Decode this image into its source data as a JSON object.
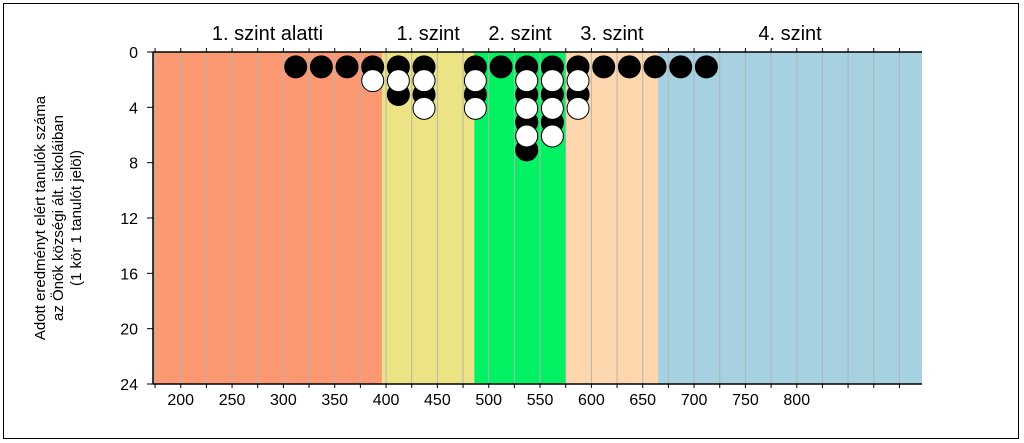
{
  "chart_data": {
    "type": "dot",
    "ylabel": [
      "Adott eredményt elért tanulók száma",
      "az Önök községi ált. iskoláiban",
      "(1 kör 1 tanulót jelöl)"
    ],
    "xlim": [
      173,
      922
    ],
    "ylim": [
      0,
      24
    ],
    "x_ticks": [
      200,
      250,
      300,
      350,
      400,
      450,
      500,
      550,
      600,
      650,
      700,
      750,
      800
    ],
    "y_ticks": [
      0,
      4,
      8,
      12,
      16,
      20,
      24
    ],
    "bands": [
      {
        "label": "1. szint alatti",
        "from": 173,
        "to": 396,
        "color": "#fc9972"
      },
      {
        "label": "1. szint",
        "from": 396,
        "to": 486,
        "color": "#ece384"
      },
      {
        "label": "2. szint",
        "from": 486,
        "to": 575,
        "color": "#00f161"
      },
      {
        "label": "3. szint",
        "from": 575,
        "to": 665,
        "color": "#fed7ae"
      },
      {
        "label": "4. szint",
        "from": 665,
        "to": 922,
        "color": "#a6d1e0"
      }
    ],
    "series": [
      {
        "fill": "#000000",
        "points": [
          [
            312,
            1
          ],
          [
            337,
            1
          ],
          [
            362,
            1
          ],
          [
            387,
            1
          ],
          [
            412,
            1
          ],
          [
            412,
            3
          ],
          [
            437,
            1
          ],
          [
            437,
            3
          ],
          [
            487,
            1
          ],
          [
            487,
            3
          ],
          [
            512,
            1
          ],
          [
            537,
            1
          ],
          [
            537,
            3
          ],
          [
            537,
            5
          ],
          [
            537,
            7
          ],
          [
            562,
            1
          ],
          [
            562,
            3
          ],
          [
            562,
            5
          ],
          [
            587,
            1
          ],
          [
            587,
            3
          ],
          [
            612,
            1
          ],
          [
            637,
            1
          ],
          [
            662,
            1
          ],
          [
            687,
            1
          ],
          [
            712,
            1
          ]
        ]
      },
      {
        "fill": "#ffffff",
        "points": [
          [
            387,
            2
          ],
          [
            412,
            2
          ],
          [
            437,
            2
          ],
          [
            437,
            4
          ],
          [
            487,
            2
          ],
          [
            487,
            4
          ],
          [
            537,
            2
          ],
          [
            537,
            4
          ],
          [
            537,
            6
          ],
          [
            562,
            2
          ],
          [
            562,
            4
          ],
          [
            562,
            6
          ],
          [
            587,
            2
          ],
          [
            587,
            4
          ]
        ]
      }
    ]
  }
}
